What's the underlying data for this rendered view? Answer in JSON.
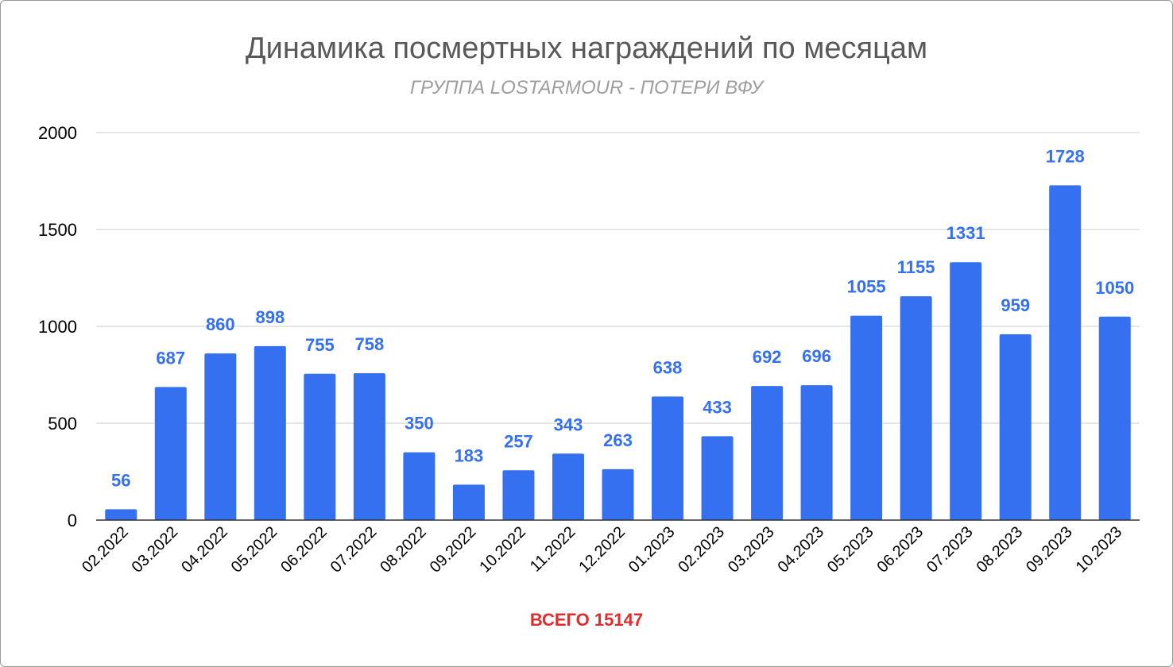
{
  "title": "Динамика посмертных награждений по месяцам",
  "subtitle": "ГРУППА LOSTARMOUR - ПОТЕРИ ВФУ",
  "total_label": "ВСЕГО 15147",
  "colors": {
    "bar": "#3470f0",
    "data_label": "#3470f0",
    "total": "#e02c2c",
    "grid": "#cccccc",
    "axis": "#333333"
  },
  "chart_data": {
    "type": "bar",
    "title": "Динамика посмертных награждений по месяцам",
    "subtitle": "ГРУППА LOSTARMOUR - ПОТЕРИ ВФУ",
    "xlabel": "",
    "ylabel": "",
    "ylim": [
      0,
      2000
    ],
    "yticks": [
      0,
      500,
      1000,
      1500,
      2000
    ],
    "grid": true,
    "legend": "none",
    "categories": [
      "02.2022",
      "03.2022",
      "04.2022",
      "05.2022",
      "06.2022",
      "07.2022",
      "08.2022",
      "09.2022",
      "10.2022",
      "11.2022",
      "12.2022",
      "01.2023",
      "02.2023",
      "03.2023",
      "04.2023",
      "05.2023",
      "06.2023",
      "07.2023",
      "08.2023",
      "09.2023",
      "10.2023"
    ],
    "values": [
      56,
      687,
      860,
      898,
      755,
      758,
      350,
      183,
      257,
      343,
      263,
      638,
      433,
      692,
      696,
      1055,
      1155,
      1331,
      959,
      1728,
      1050
    ],
    "data_labels": [
      "56",
      "687",
      "860",
      "898",
      "755",
      "758",
      "350",
      "183",
      "257",
      "343",
      "263",
      "638",
      "433",
      "692",
      "696",
      "1055",
      "1155",
      "1331",
      "959",
      "1728",
      "1050"
    ]
  }
}
